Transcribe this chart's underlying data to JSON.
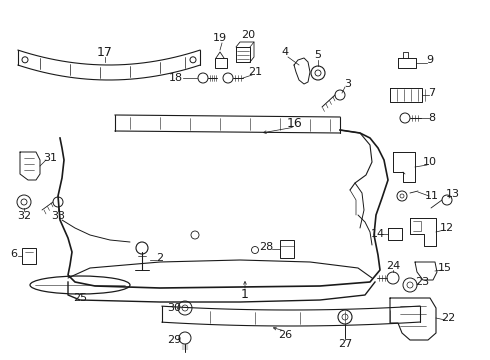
{
  "background": "#ffffff",
  "line_color": "#1a1a1a",
  "fig_w": 4.9,
  "fig_h": 3.6,
  "dpi": 100
}
